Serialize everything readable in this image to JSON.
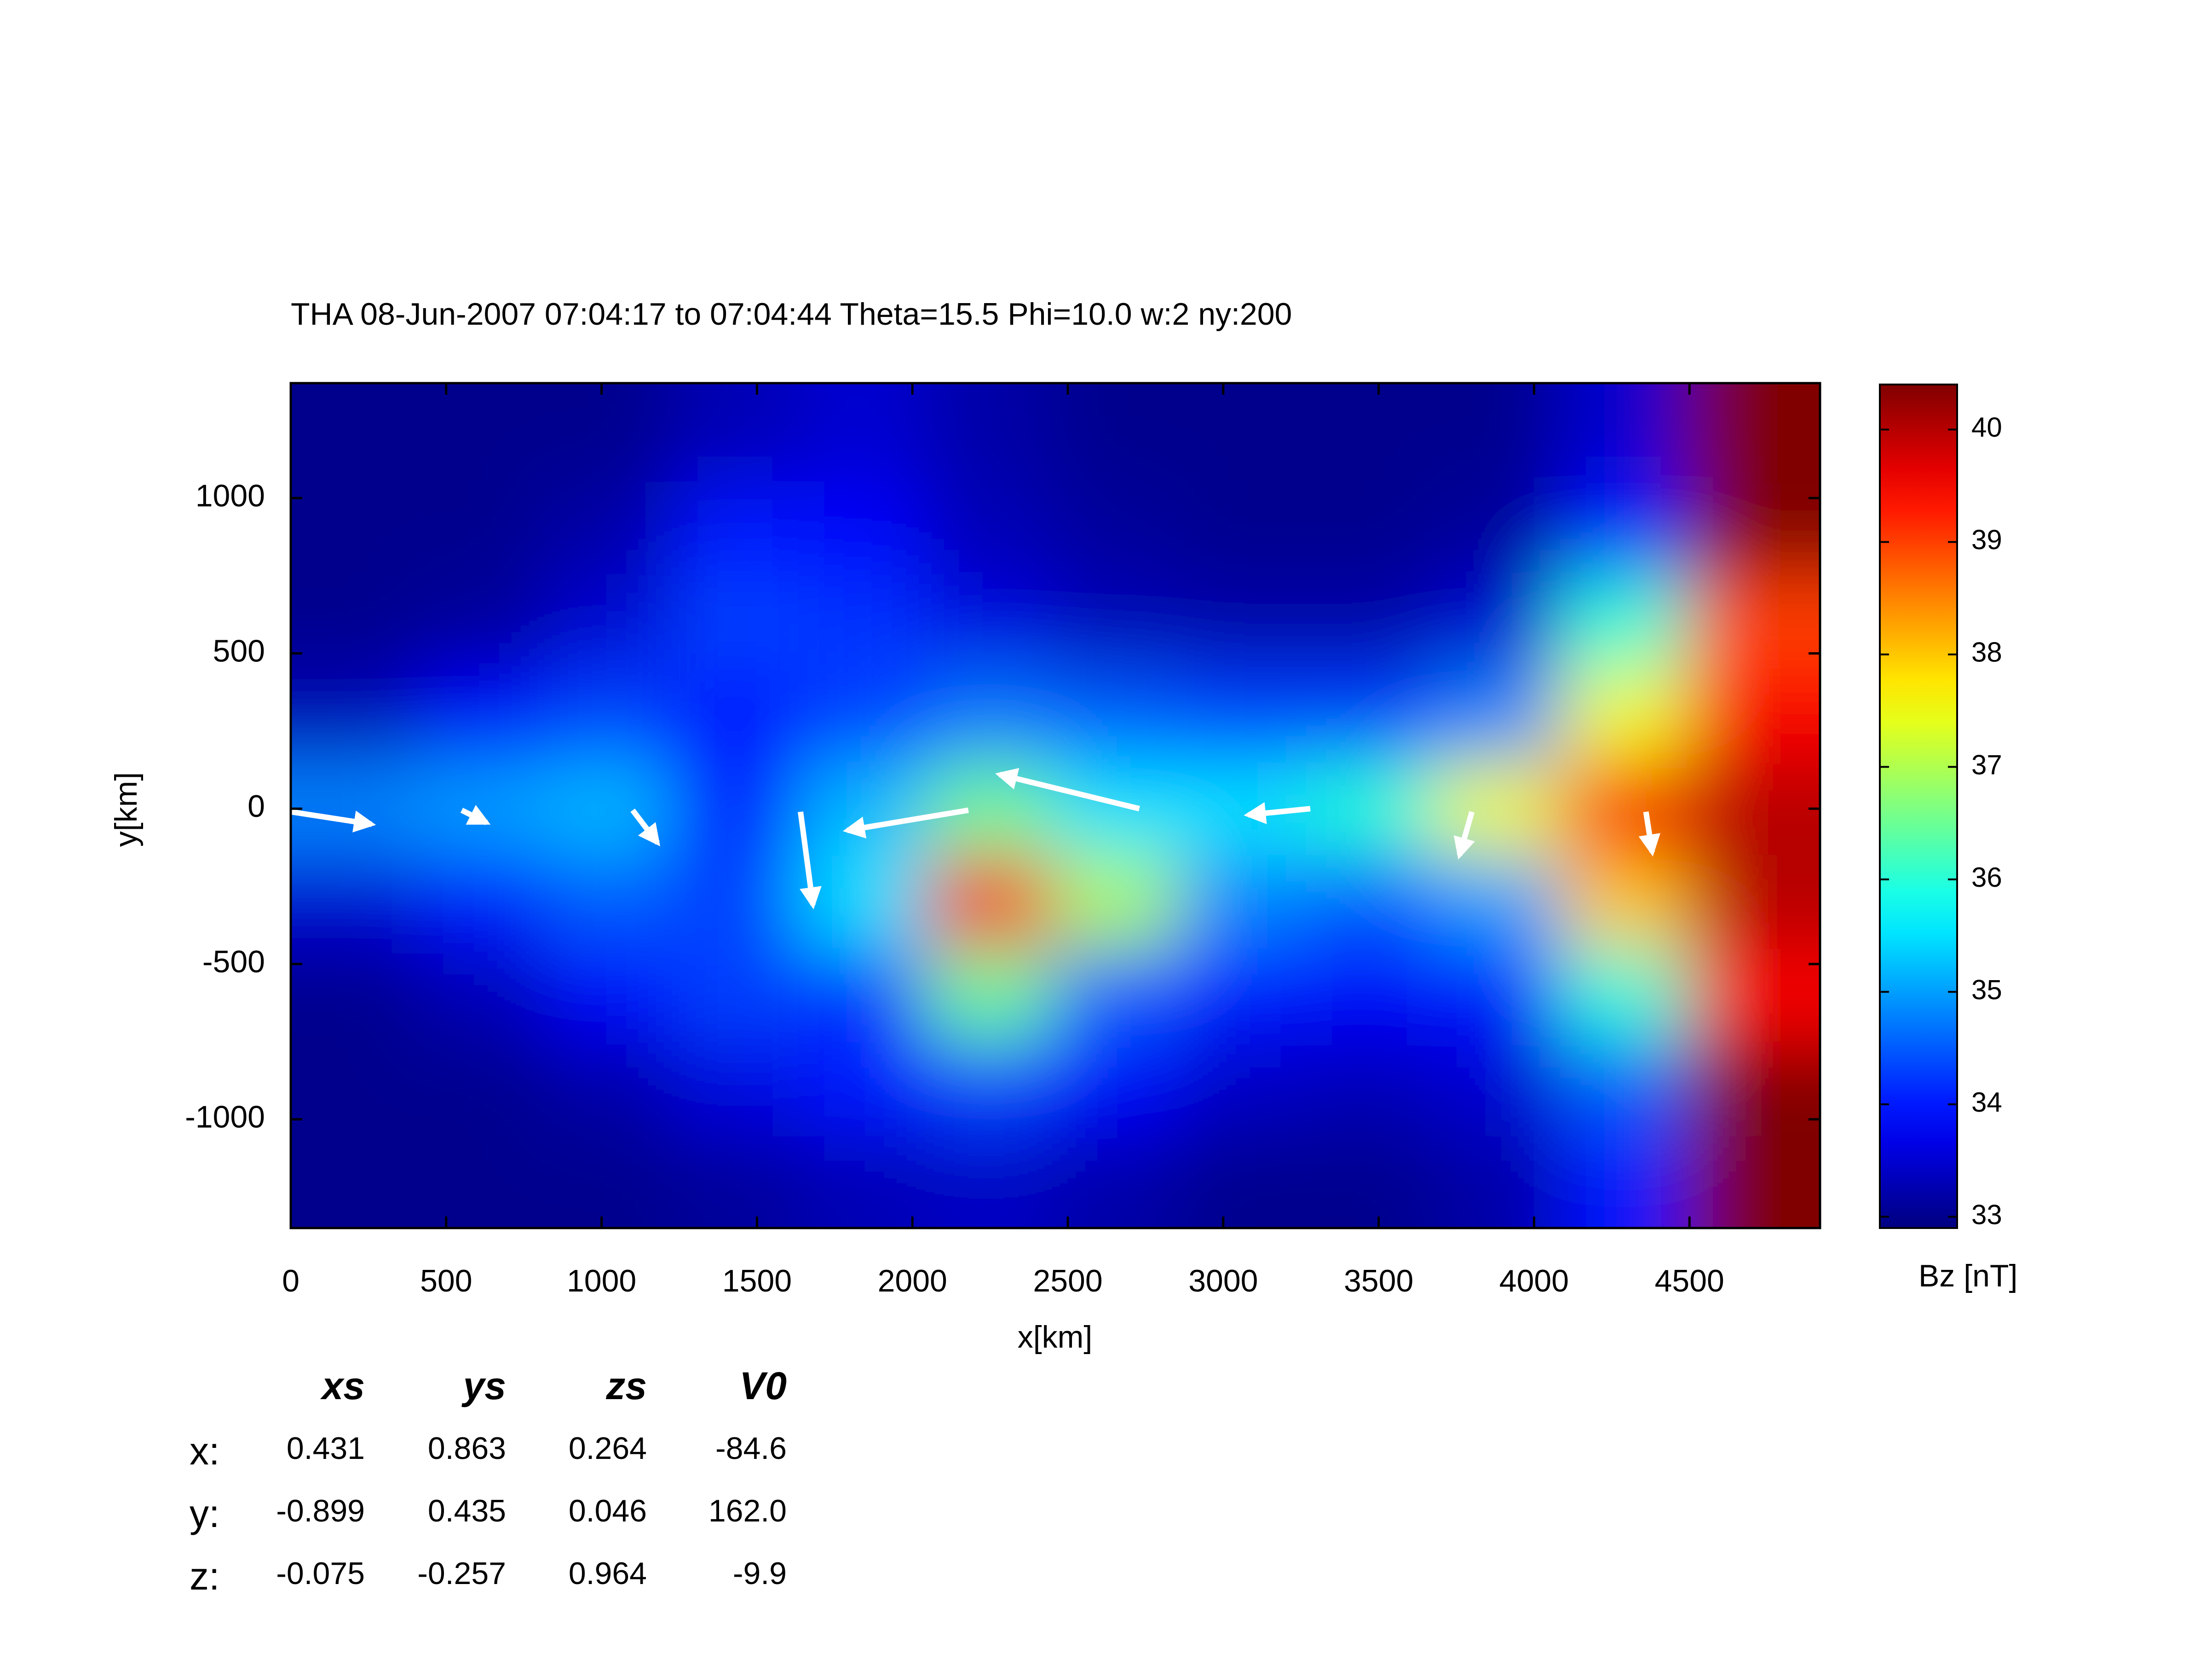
{
  "chart_data": {
    "type": "heatmap",
    "title": "THA 08-Jun-2007 07:04:17 to 07:04:44 Theta=15.5 Phi=10.0 w:2 ny:200",
    "x_label": "x[km]",
    "y_label": "y[km]",
    "colorbar_label": "Bz [nT]",
    "colormap": "jet",
    "xlim": [
      0,
      4920
    ],
    "ylim": [
      -1350,
      1370
    ],
    "clim": [
      32.9,
      40.4
    ],
    "xticks": [
      0,
      500,
      1000,
      1500,
      2000,
      2500,
      3000,
      3500,
      4000,
      4500
    ],
    "yticks": [
      -1000,
      -500,
      0,
      500,
      1000
    ],
    "cticks": [
      33,
      34,
      35,
      36,
      37,
      38,
      39,
      40
    ],
    "x": [
      204,
      612,
      1020,
      1429,
      1837,
      2245,
      2654,
      3062,
      3470,
      3879,
      4287,
      4696
    ],
    "y": [
      1200,
      900,
      600,
      300,
      0,
      -300,
      -600,
      -900,
      -1200
    ],
    "z": [
      [
        33,
        33,
        33,
        33.3,
        33.5,
        33.2,
        33,
        33,
        33,
        33,
        33.5,
        40.4
      ],
      [
        33,
        33,
        33.2,
        34,
        33.8,
        33.3,
        33.1,
        33,
        33,
        33.1,
        34,
        40.4
      ],
      [
        33,
        33.1,
        33.5,
        34.3,
        34.2,
        33.6,
        33.3,
        33.2,
        33.2,
        33.5,
        36,
        39
      ],
      [
        33.3,
        33.8,
        34.3,
        34,
        34.3,
        34.7,
        34.5,
        34.3,
        34.3,
        34.8,
        37.5,
        39.5
      ],
      [
        34.8,
        35,
        35.2,
        34,
        35.2,
        36.5,
        35.5,
        35.5,
        36,
        37.5,
        39.5,
        40
      ],
      [
        33.5,
        34,
        34.5,
        34.3,
        35.5,
        39.5,
        37,
        34.8,
        34.5,
        35,
        38,
        40
      ],
      [
        33,
        33.3,
        33.8,
        34.3,
        34.2,
        36.5,
        34.5,
        34,
        33.8,
        34,
        36,
        39.5
      ],
      [
        33,
        33,
        33.2,
        33.6,
        34,
        34.3,
        33.8,
        33.4,
        33.3,
        33.5,
        34.5,
        40.4
      ],
      [
        33,
        33,
        33,
        33.1,
        33.3,
        33.4,
        33.2,
        33,
        33,
        33.2,
        34,
        40.4
      ]
    ],
    "vectors": {
      "x": [
        0,
        550,
        1100,
        1640,
        2180,
        2730,
        3280,
        3800,
        4360
      ],
      "y": [
        -10,
        -5,
        -5,
        -10,
        -5,
        0,
        0,
        -10,
        -10
      ],
      "dx": [
        260,
        80,
        80,
        40,
        -390,
        -450,
        -200,
        -40,
        20
      ],
      "dy": [
        -40,
        -40,
        -105,
        -300,
        -65,
        110,
        -20,
        -140,
        -130
      ],
      "color": "#ffffff"
    },
    "table": {
      "columns": [
        "xs",
        "ys",
        "zs",
        "V0"
      ],
      "rows": [
        "x:",
        "y:",
        "z:"
      ],
      "cells": [
        [
          "0.431",
          "0.863",
          "0.264",
          "-84.6"
        ],
        [
          "-0.899",
          "0.435",
          "0.046",
          "162.0"
        ],
        [
          "-0.075",
          "-0.257",
          "0.964",
          "-9.9"
        ]
      ]
    }
  }
}
